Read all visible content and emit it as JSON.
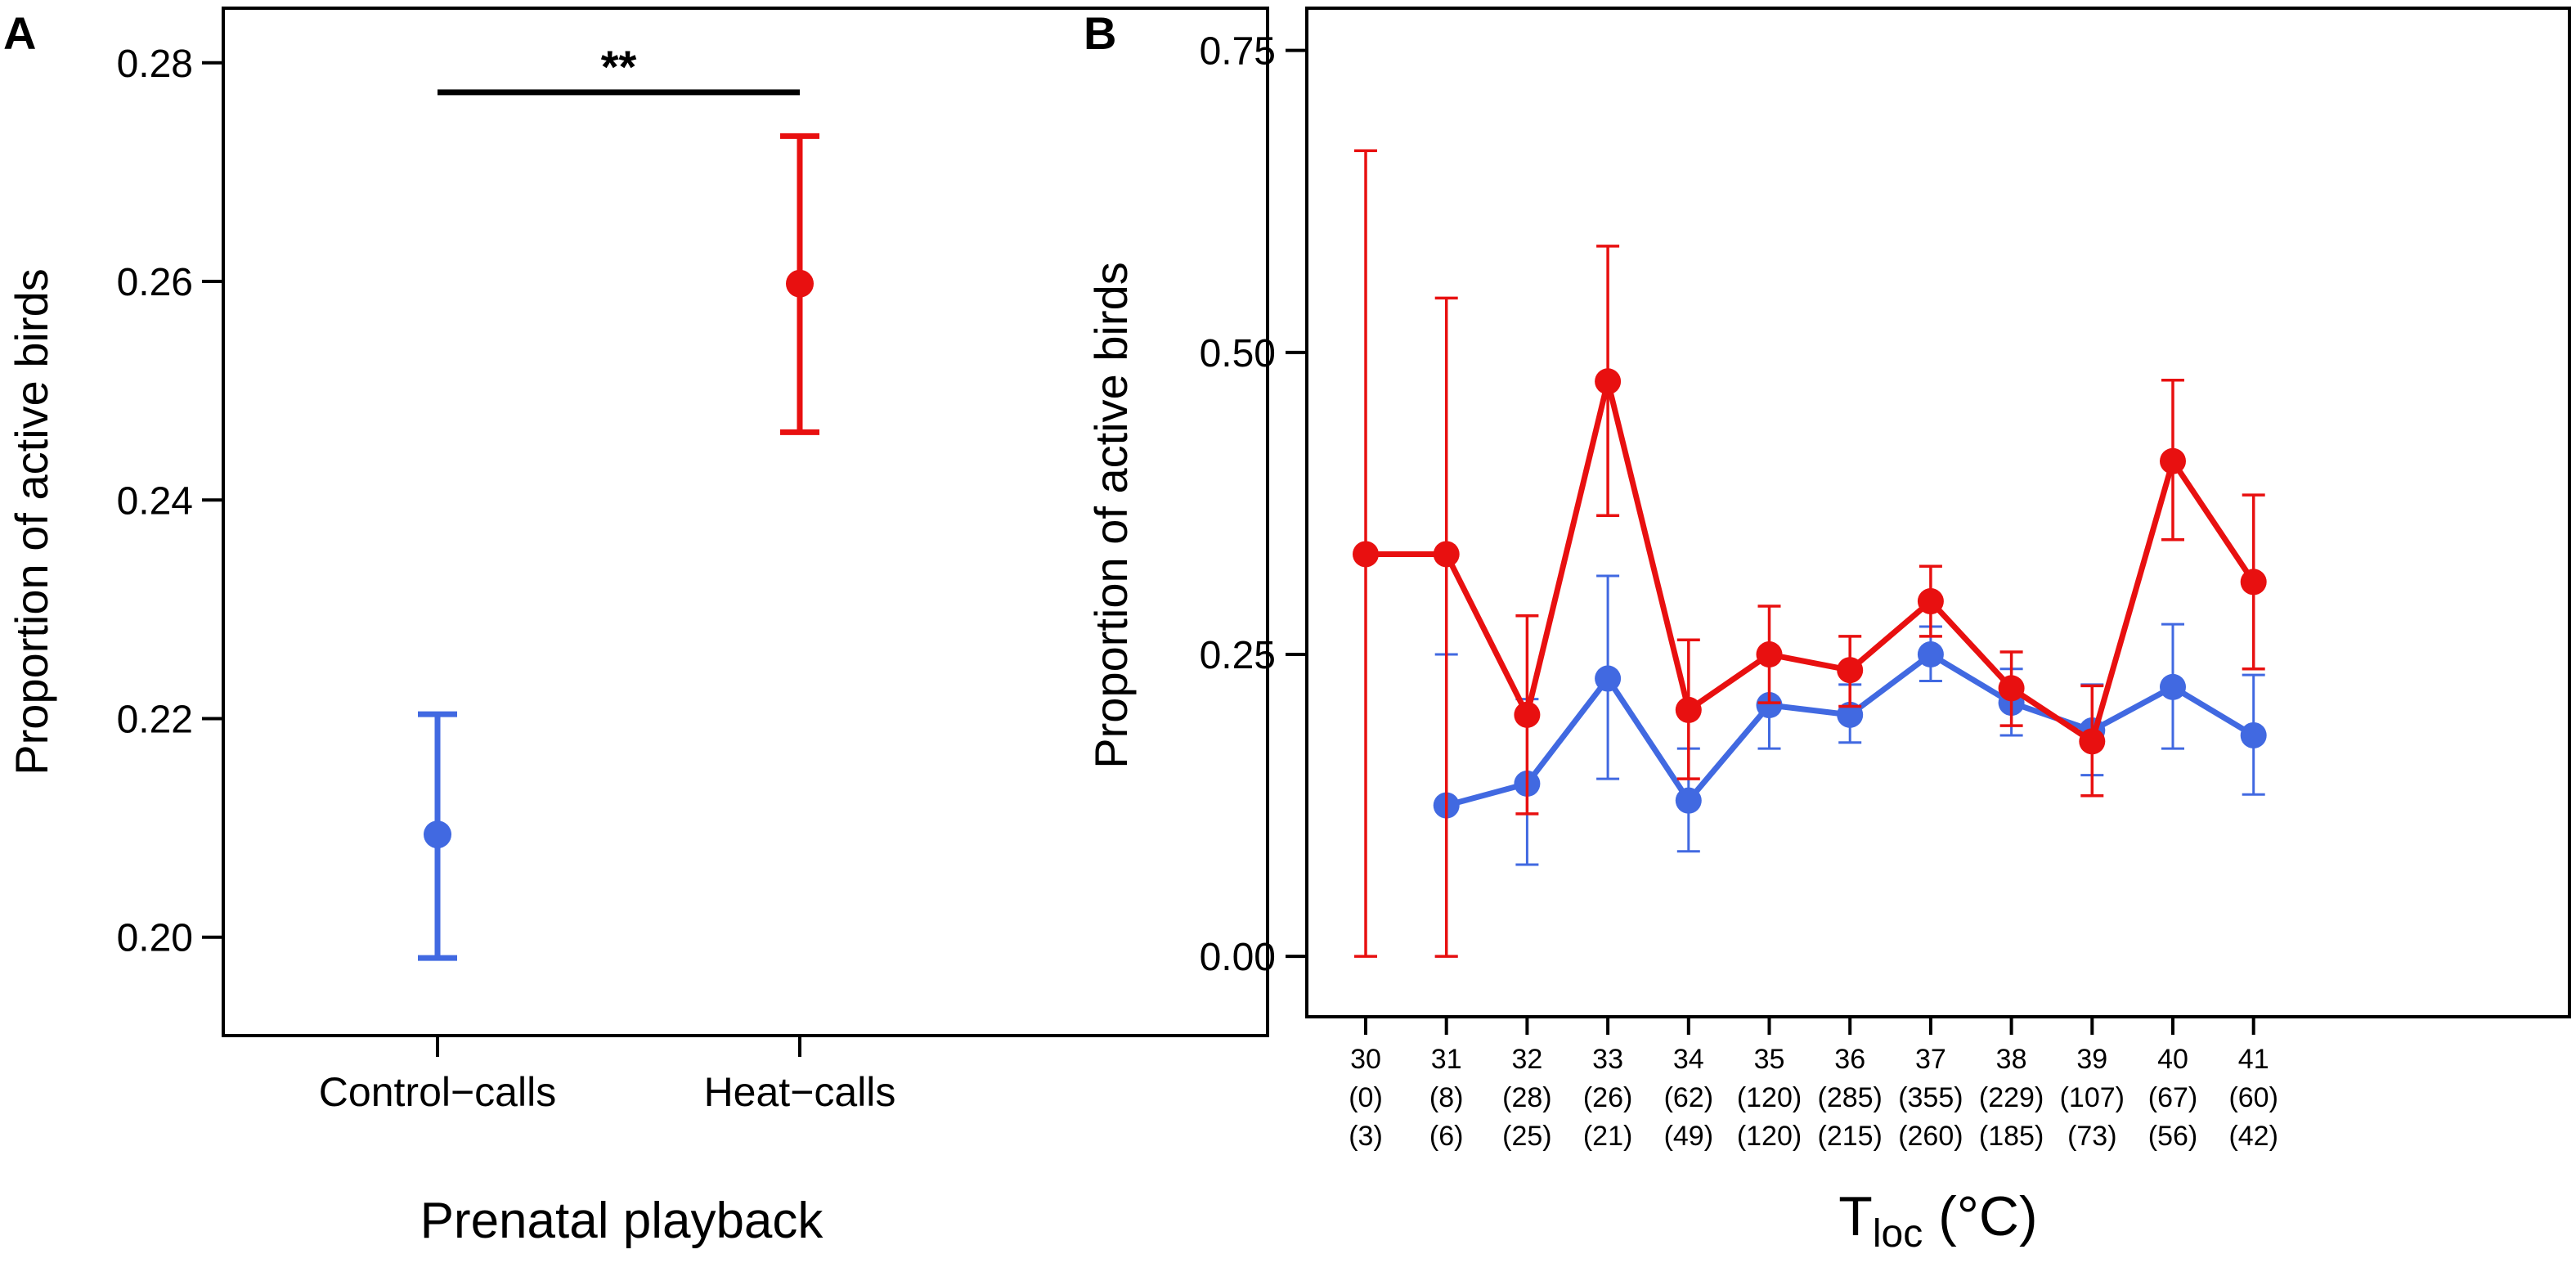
{
  "chart_data": [
    {
      "panel": "A",
      "type": "scatter",
      "title": "",
      "xlabel": "Prenatal playback",
      "ylabel": "Proportion of active birds",
      "categories": [
        "Control−calls",
        "Heat−calls"
      ],
      "ylim": [
        0.191,
        0.285
      ],
      "yticks": [
        "0.20",
        "0.22",
        "0.24",
        "0.26",
        "0.28"
      ],
      "grid": false,
      "series": [
        {
          "name": "Control-calls",
          "color": "#4169E1",
          "value": 0.2094,
          "lower": 0.1981,
          "upper": 0.2204
        },
        {
          "name": "Heat-calls",
          "color": "#E81010",
          "value": 0.2598,
          "lower": 0.2462,
          "upper": 0.2733
        }
      ],
      "significance": {
        "label": "**",
        "between": [
          "Control−calls",
          "Heat−calls"
        ],
        "y": 0.2773
      }
    },
    {
      "panel": "B",
      "type": "line",
      "title": "",
      "xlabel": {
        "main": "T",
        "sub": "loc",
        "unit": " (°C)"
      },
      "ylabel": "Proportion of active birds",
      "ylim": [
        -0.05,
        0.785
      ],
      "yticks": [
        "0.00",
        "0.25",
        "0.50",
        "0.75"
      ],
      "grid": false,
      "categories": [
        "30",
        "31",
        "32",
        "33",
        "34",
        "35",
        "36",
        "37",
        "38",
        "39",
        "40",
        "41"
      ],
      "n_row1": [
        "(0)",
        "(8)",
        "(28)",
        "(26)",
        "(62)",
        "(120)",
        "(285)",
        "(355)",
        "(229)",
        "(107)",
        "(67)",
        "(60)"
      ],
      "n_row2": [
        "(3)",
        "(6)",
        "(25)",
        "(21)",
        "(49)",
        "(120)",
        "(215)",
        "(260)",
        "(185)",
        "(73)",
        "(56)",
        "(42)"
      ],
      "series": [
        {
          "name": "Control-calls",
          "color": "#4169E1",
          "values": [
            null,
            0.125,
            0.143,
            0.23,
            0.129,
            0.208,
            0.2,
            0.25,
            0.21,
            0.187,
            0.223,
            0.183
          ],
          "lower": [
            null,
            0.0,
            0.076,
            0.147,
            0.087,
            0.172,
            0.177,
            0.228,
            0.183,
            0.15,
            0.172,
            0.134
          ],
          "upper": [
            null,
            0.25,
            0.213,
            0.315,
            0.172,
            0.246,
            0.225,
            0.273,
            0.238,
            0.225,
            0.275,
            0.233
          ]
        },
        {
          "name": "Heat-calls",
          "color": "#E81010",
          "values": [
            0.333,
            0.333,
            0.2,
            0.476,
            0.204,
            0.25,
            0.237,
            0.294,
            0.222,
            0.178,
            0.41,
            0.31
          ],
          "lower": [
            0.0,
            0.0,
            0.118,
            0.365,
            0.147,
            0.21,
            0.207,
            0.265,
            0.191,
            0.133,
            0.345,
            0.238
          ],
          "upper": [
            0.667,
            0.545,
            0.282,
            0.588,
            0.262,
            0.29,
            0.265,
            0.323,
            0.252,
            0.224,
            0.477,
            0.382
          ]
        }
      ]
    }
  ]
}
